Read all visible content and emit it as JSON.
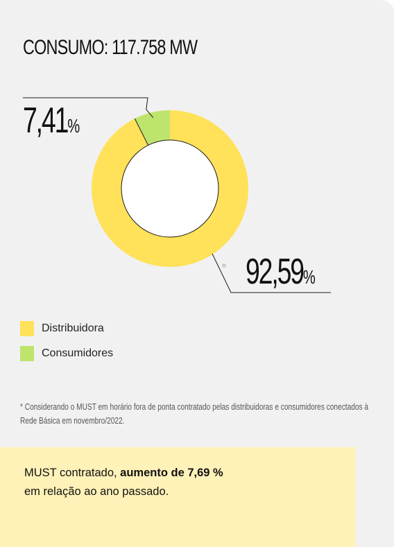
{
  "title": "CONSUMO: 117.758 MW",
  "colors": {
    "distribuidora": "#ffe15a",
    "consumidores": "#bfe46e",
    "background": "#f1f1f1",
    "callout": "#fff2b8"
  },
  "chart_data": {
    "type": "pie",
    "subtype": "donut",
    "title": "CONSUMO: 117.758 MW",
    "series": [
      {
        "name": "Distribuidora",
        "value": 92.59,
        "label_number": "92,59",
        "label_unit": "%",
        "color": "#ffe15a"
      },
      {
        "name": "Consumidores",
        "value": 7.41,
        "label_number": "7,41",
        "label_unit": "%",
        "color": "#bfe46e"
      }
    ],
    "legend_position": "bottom-left"
  },
  "legend": {
    "items": [
      {
        "label": "Distribuidora",
        "color": "#ffe15a"
      },
      {
        "label": "Consumidores",
        "color": "#bfe46e"
      }
    ]
  },
  "footnote": "* Considerando o MUST em horário fora de ponta contratado pelas distribuidoras e consumidores conectados à Rede Básica em novembro/2022.",
  "callout": {
    "prefix": "MUST contratado, ",
    "highlight": "aumento de 7,69 %",
    "suffix": "em relação ao ano passado."
  }
}
